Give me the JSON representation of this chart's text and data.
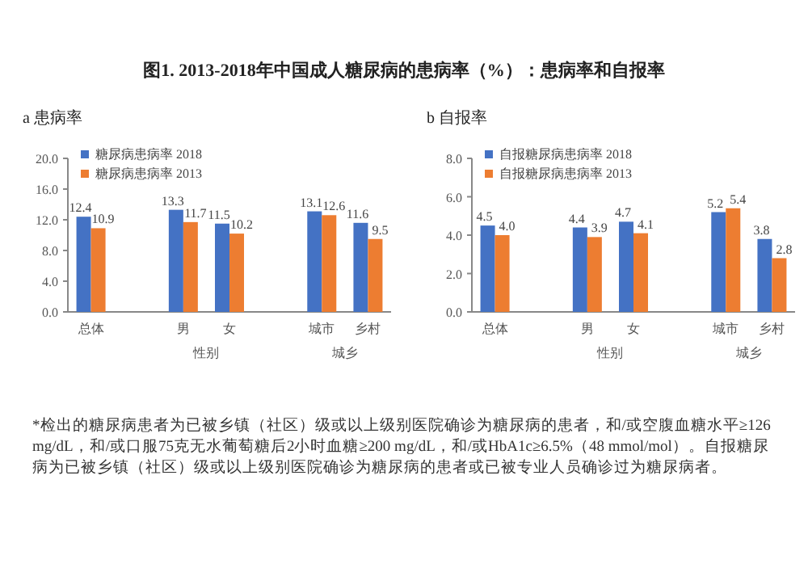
{
  "chart_data": [
    {
      "type": "bar",
      "title": "图1. 2013-2018年中国成人糖尿病的患病率（%）：患病率和自报率",
      "subtitle": "a  患病率",
      "categories": [
        "总体",
        null,
        "男",
        "女",
        null,
        "城市",
        "乡村"
      ],
      "series": [
        {
          "name": "糖尿病患病率 2018",
          "color": "#4472c4",
          "values": [
            12.4,
            null,
            13.3,
            11.5,
            null,
            13.1,
            11.6
          ],
          "value_labels": [
            "12.4",
            null,
            "13.3",
            "11.5",
            null,
            "13.1",
            "11.6"
          ]
        },
        {
          "name": "糖尿病患病率 2013",
          "color": "#ed7d31",
          "values": [
            10.9,
            null,
            11.7,
            10.2,
            null,
            12.6,
            9.5
          ],
          "value_labels": [
            "10.9",
            null,
            "11.7",
            "10.2",
            null,
            "12.6",
            "9.5"
          ]
        }
      ],
      "ylim": [
        0,
        20
      ],
      "yticks": [
        {
          "value": 0,
          "label": "0.0"
        },
        {
          "value": 4,
          "label": "4.0"
        },
        {
          "value": 8,
          "label": "8.0"
        },
        {
          "value": 12,
          "label": "12.0"
        },
        {
          "value": 16,
          "label": "16.0"
        },
        {
          "value": 20,
          "label": "20.0"
        }
      ],
      "legend": "top left",
      "annotations": [
        "性别",
        "城乡",
        "*检出的糖尿病患者为已被乡镇（社区）级或以上级别医院确诊为糖尿病的患者，和/或空腹血糖水平≥126 mg/dL，和/或口服75克无水葡萄糖后2小时血糖≥200 mg/dL，和/或HbA1c≥6.5%（48 mmol/mol）。自报糖尿病为已被乡镇（社区）级或以上级别医院确诊为糖尿病的患者或已被专业人员确诊过为糖尿病者。"
      ]
    },
    {
      "type": "bar",
      "subtitle": "b  自报率",
      "categories": [
        "总体",
        null,
        "男",
        "女",
        null,
        "城市",
        "乡村"
      ],
      "series": [
        {
          "name": "自报糖尿病患病率 2018",
          "color": "#4472c4",
          "values": [
            4.5,
            null,
            4.4,
            4.7,
            null,
            5.2,
            3.8
          ],
          "value_labels": [
            "4.5",
            null,
            "4.4",
            "4.7",
            null,
            "5.2",
            "3.8"
          ]
        },
        {
          "name": "自报糖尿病患病率 2013",
          "color": "#ed7d31",
          "values": [
            4.0,
            null,
            3.9,
            4.1,
            null,
            5.4,
            2.8
          ],
          "value_labels": [
            "4.0",
            null,
            "3.9",
            "4.1",
            null,
            "5.4",
            "2.8"
          ]
        }
      ],
      "ylim": [
        0,
        8
      ],
      "yticks": [
        {
          "value": 0,
          "label": "0.0"
        },
        {
          "value": 2,
          "label": "2.0"
        },
        {
          "value": 4,
          "label": "4.0"
        },
        {
          "value": 6,
          "label": "6.0"
        },
        {
          "value": 8,
          "label": "8.0"
        }
      ],
      "legend": "top left",
      "annotations": [
        "性别",
        "城乡"
      ]
    }
  ]
}
